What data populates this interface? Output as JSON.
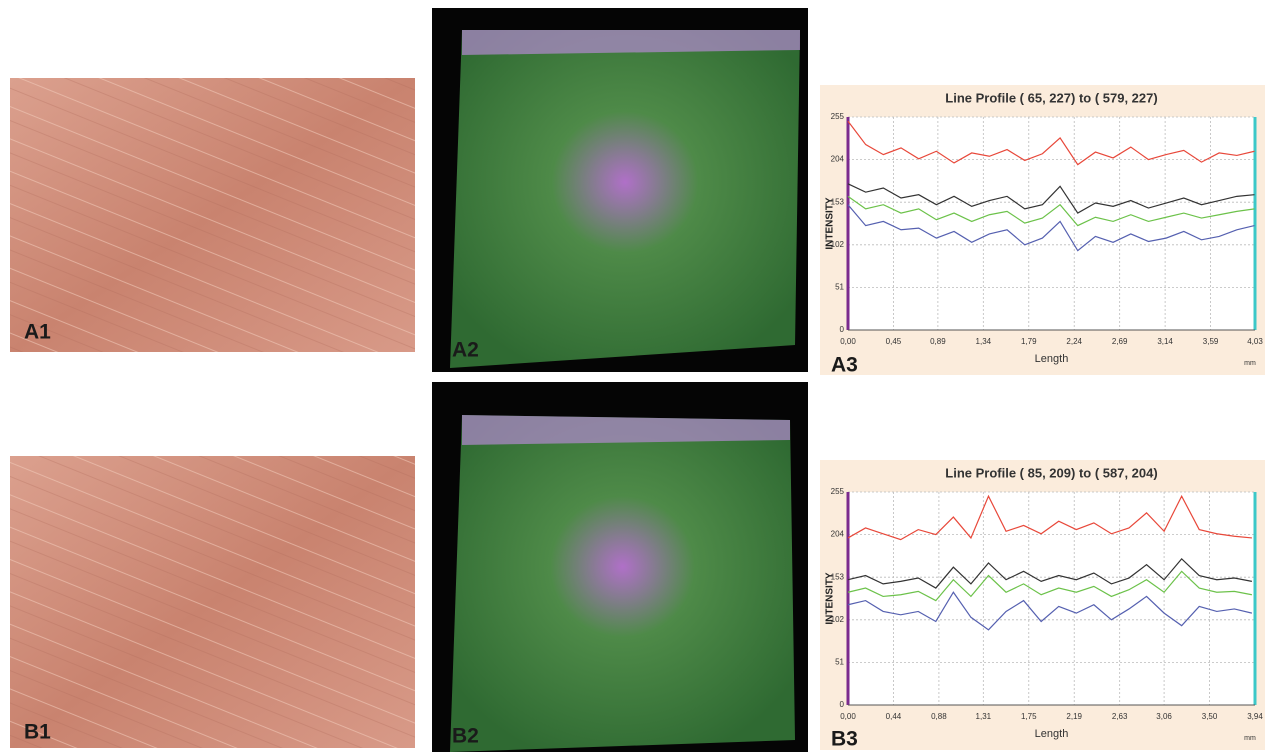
{
  "panel_labels": [
    "A1",
    "A2",
    "A3",
    "B1",
    "B2",
    "B3"
  ],
  "chart_data": [
    {
      "type": "line",
      "title": "Line Profile ( 65, 227) to ( 579, 227)",
      "x_label": "Length",
      "y_label": "INTENSITY",
      "unit": "mm",
      "x": [
        0,
        0.175,
        0.35,
        0.525,
        0.7,
        0.875,
        1.05,
        1.225,
        1.4,
        1.575,
        1.75,
        1.925,
        2.1,
        2.275,
        2.45,
        2.625,
        2.8,
        2.975,
        3.15,
        3.325,
        3.5,
        3.675,
        3.85,
        4.025
      ],
      "series": [
        {
          "color": "#e8483a",
          "values": [
            250,
            222,
            210,
            218,
            205,
            214,
            200,
            212,
            208,
            216,
            203,
            211,
            230,
            198,
            213,
            206,
            219,
            204,
            210,
            215,
            201,
            212,
            209,
            214
          ]
        },
        {
          "color": "#333333",
          "values": [
            175,
            165,
            170,
            158,
            162,
            150,
            160,
            148,
            155,
            160,
            145,
            150,
            172,
            140,
            152,
            148,
            155,
            146,
            152,
            158,
            150,
            155,
            160,
            162
          ]
        },
        {
          "color": "#6cc24a",
          "values": [
            160,
            145,
            150,
            140,
            145,
            132,
            140,
            130,
            138,
            142,
            128,
            134,
            150,
            125,
            135,
            130,
            138,
            130,
            135,
            140,
            134,
            138,
            142,
            145
          ]
        },
        {
          "color": "#5560b0",
          "values": [
            150,
            125,
            130,
            120,
            122,
            110,
            118,
            105,
            115,
            120,
            102,
            110,
            130,
            95,
            112,
            105,
            115,
            106,
            110,
            118,
            108,
            112,
            120,
            125
          ]
        }
      ],
      "xlim": [
        0,
        4.03
      ],
      "ylim": [
        0,
        255
      ],
      "xticks": [
        {
          "value": 0,
          "label": "0,00"
        },
        {
          "value": 0.45,
          "label": "0,45"
        },
        {
          "value": 0.89,
          "label": "0,89"
        },
        {
          "value": 1.34,
          "label": "1,34"
        },
        {
          "value": 1.79,
          "label": "1,79"
        },
        {
          "value": 2.24,
          "label": "2,24"
        },
        {
          "value": 2.69,
          "label": "2,69"
        },
        {
          "value": 3.14,
          "label": "3,14"
        },
        {
          "value": 3.59,
          "label": "3,59"
        },
        {
          "value": 4.03,
          "label": "4,03"
        }
      ],
      "yticks": [
        0,
        51,
        102,
        153,
        204,
        255
      ],
      "grid": true
    },
    {
      "type": "line",
      "title": "Line Profile ( 85, 209) to ( 587, 204)",
      "x_label": "Length",
      "y_label": "INTENSITY",
      "unit": "mm",
      "x": [
        0,
        0.17,
        0.34,
        0.51,
        0.68,
        0.85,
        1.02,
        1.19,
        1.36,
        1.53,
        1.7,
        1.87,
        2.04,
        2.21,
        2.38,
        2.55,
        2.72,
        2.89,
        3.06,
        3.23,
        3.4,
        3.57,
        3.74,
        3.91
      ],
      "series": [
        {
          "color": "#e8483a",
          "values": [
            200,
            212,
            205,
            198,
            210,
            204,
            225,
            200,
            250,
            208,
            215,
            205,
            220,
            210,
            218,
            205,
            212,
            230,
            208,
            250,
            210,
            205,
            202,
            200
          ]
        },
        {
          "color": "#333333",
          "values": [
            150,
            155,
            145,
            148,
            152,
            140,
            165,
            145,
            170,
            150,
            160,
            148,
            155,
            150,
            158,
            145,
            152,
            168,
            150,
            175,
            155,
            150,
            152,
            148
          ]
        },
        {
          "color": "#6cc24a",
          "values": [
            135,
            140,
            130,
            132,
            136,
            125,
            150,
            130,
            155,
            135,
            145,
            132,
            140,
            135,
            142,
            130,
            138,
            150,
            135,
            160,
            140,
            135,
            136,
            132
          ]
        },
        {
          "color": "#5560b0",
          "values": [
            120,
            125,
            112,
            108,
            112,
            100,
            135,
            105,
            90,
            112,
            125,
            100,
            118,
            110,
            120,
            102,
            115,
            130,
            110,
            95,
            118,
            112,
            115,
            110
          ]
        }
      ],
      "xlim": [
        0,
        3.94
      ],
      "ylim": [
        0,
        255
      ],
      "xticks": [
        {
          "value": 0,
          "label": "0,00"
        },
        {
          "value": 0.44,
          "label": "0,44"
        },
        {
          "value": 0.88,
          "label": "0,88"
        },
        {
          "value": 1.31,
          "label": "1,31"
        },
        {
          "value": 1.75,
          "label": "1,75"
        },
        {
          "value": 2.19,
          "label": "2,19"
        },
        {
          "value": 2.63,
          "label": "2,63"
        },
        {
          "value": 3.06,
          "label": "3,06"
        },
        {
          "value": 3.5,
          "label": "3,50"
        },
        {
          "value": 3.94,
          "label": "3,94"
        }
      ],
      "yticks": [
        0,
        51,
        102,
        153,
        204,
        255
      ],
      "grid": true
    }
  ]
}
